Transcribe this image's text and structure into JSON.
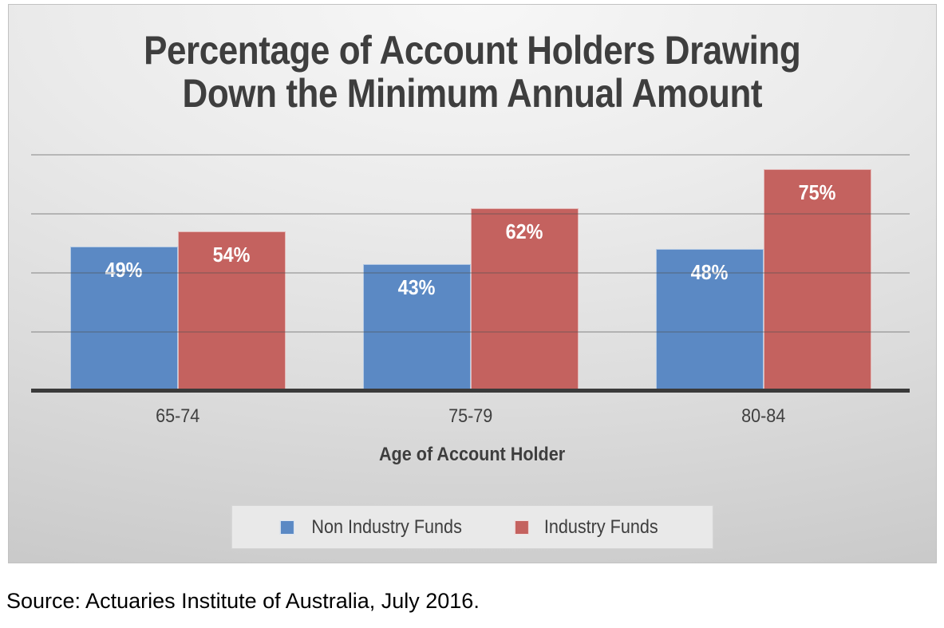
{
  "chart_data": {
    "type": "bar",
    "title": "Percentage of Account Holders Drawing Down the Minimum Annual Amount",
    "title_lines": [
      "Percentage of Account Holders Drawing",
      "Down the Minimum Annual Amount"
    ],
    "categories": [
      "65-74",
      "75-79",
      "80-84"
    ],
    "series": [
      {
        "name": "Non Industry Funds",
        "color": "#5B89C4",
        "values": [
          49,
          43,
          48
        ],
        "labels": [
          "49%",
          "43%",
          "48%"
        ]
      },
      {
        "name": "Industry Funds",
        "color": "#C4625F",
        "values": [
          54,
          62,
          75
        ],
        "labels": [
          "54%",
          "62%",
          "75%"
        ]
      }
    ],
    "xlabel": "Age of Account Holder",
    "ylabel": "",
    "ylim": [
      0,
      80
    ],
    "gridlines": [
      20,
      40,
      60,
      80
    ],
    "grid": true,
    "legend_position": "bottom",
    "data_label_format": "percent"
  },
  "source_note": "Source: Actuaries Institute of Australia, July 2016.",
  "colors": {
    "non_industry_blue": "#5B89C4",
    "industry_red": "#C4625F",
    "title_text": "#3E3E3E",
    "axis_line": "#3A3A3A",
    "gridline": "#A6A6A6",
    "panel_background_light": "#F7F7F7",
    "panel_background_dark": "#C6C6C6",
    "legend_background": "#E9E9E9",
    "bar_label_text": "#FFFFFF"
  }
}
